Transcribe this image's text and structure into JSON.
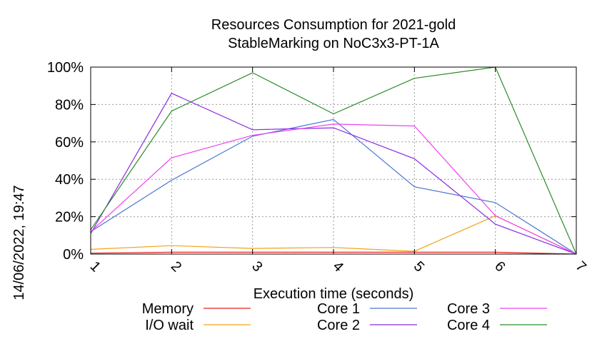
{
  "timestamp": "14/06/2022, 19:47",
  "chart_data": {
    "type": "line",
    "title": "Resources Consumption for 2021-gold",
    "subtitle": "StableMarking on NoC3x3-PT-1A",
    "xlabel": "Execution time (seconds)",
    "ylabel": "",
    "x": [
      1,
      2,
      3,
      4,
      5,
      6,
      7
    ],
    "xlim": [
      1,
      7
    ],
    "ylim": [
      0,
      100
    ],
    "x_tick_labels": [
      "1",
      "2",
      "3",
      "4",
      "5",
      "6",
      "7"
    ],
    "y_ticks": [
      0,
      20,
      40,
      60,
      80,
      100
    ],
    "y_tick_labels": [
      "0%",
      "20%",
      "40%",
      "60%",
      "80%",
      "100%"
    ],
    "grid": true,
    "legend_position": "bottom",
    "series": [
      {
        "name": "Memory",
        "color": "#e8201e",
        "values": [
          0.5,
          1,
          1,
          1,
          1,
          1,
          0
        ]
      },
      {
        "name": "I/O wait",
        "color": "#f2a418",
        "values": [
          2.5,
          4.5,
          3,
          3.5,
          1.5,
          20.5,
          0
        ]
      },
      {
        "name": "Core 1",
        "color": "#4a77d1",
        "values": [
          12,
          39.5,
          63,
          72,
          36,
          27.5,
          0
        ]
      },
      {
        "name": "Core 2",
        "color": "#8a2be2",
        "values": [
          11,
          86,
          66.5,
          67.5,
          51,
          16,
          0
        ]
      },
      {
        "name": "Core 3",
        "color": "#f040f0",
        "values": [
          12,
          51.5,
          63.5,
          69.5,
          68.5,
          20.5,
          0
        ]
      },
      {
        "name": "Core 4",
        "color": "#2a8c2a",
        "values": [
          13,
          76.5,
          97,
          75,
          94,
          100,
          0
        ]
      }
    ]
  }
}
